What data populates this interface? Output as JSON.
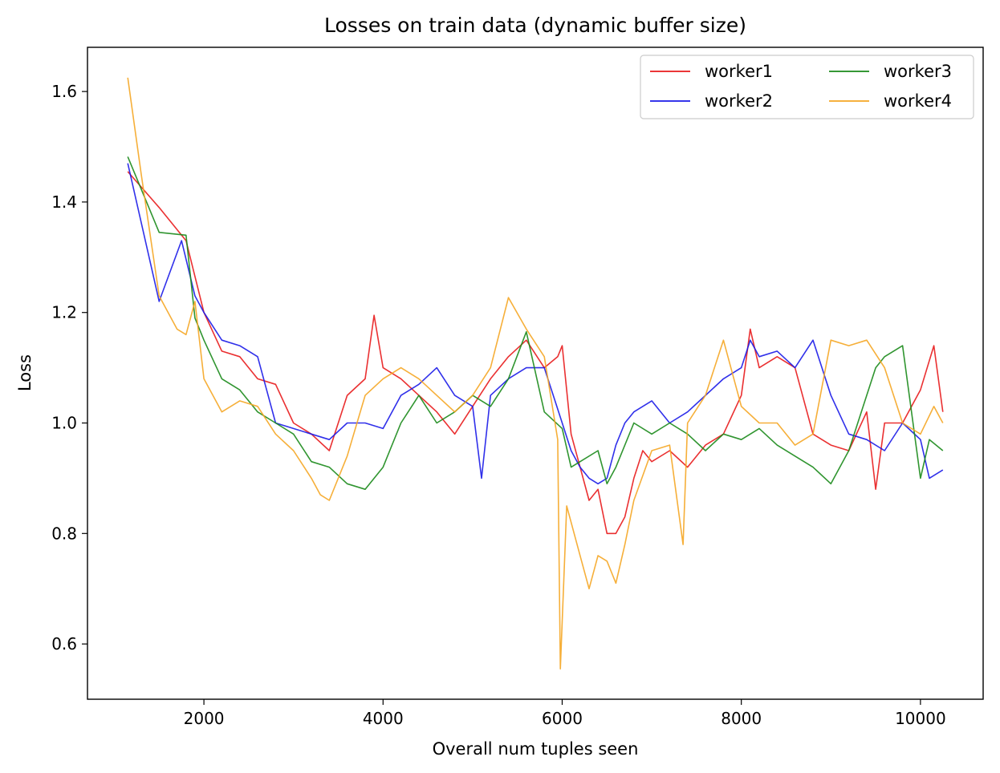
{
  "chart_data": {
    "type": "line",
    "title": "Losses on train data (dynamic buffer size)",
    "xlabel": "Overall num tuples seen",
    "ylabel": "Loss",
    "xlim": [
      700,
      10700
    ],
    "ylim": [
      0.5,
      1.68
    ],
    "xticks": [
      2000,
      4000,
      6000,
      8000,
      10000
    ],
    "yticks": [
      0.6,
      0.8,
      1.0,
      1.2,
      1.4,
      1.6
    ],
    "legend": {
      "location": "top-right",
      "columns": 2
    },
    "series": [
      {
        "name": "worker1",
        "color": "#e8191b",
        "x": [
          1150,
          1500,
          1800,
          2000,
          2200,
          2400,
          2600,
          2800,
          3000,
          3200,
          3400,
          3600,
          3800,
          3900,
          4000,
          4200,
          4400,
          4600,
          4800,
          5000,
          5200,
          5400,
          5600,
          5800,
          5950,
          6000,
          6100,
          6200,
          6300,
          6400,
          6500,
          6600,
          6700,
          6800,
          6900,
          7000,
          7200,
          7400,
          7600,
          7800,
          8000,
          8100,
          8200,
          8400,
          8600,
          8800,
          9000,
          9200,
          9400,
          9500,
          9600,
          9800,
          10000,
          10150,
          10250
        ],
        "y": [
          1.455,
          1.39,
          1.33,
          1.2,
          1.13,
          1.12,
          1.08,
          1.07,
          1.0,
          0.98,
          0.95,
          1.05,
          1.08,
          1.195,
          1.1,
          1.08,
          1.05,
          1.02,
          0.98,
          1.03,
          1.08,
          1.12,
          1.15,
          1.1,
          1.12,
          1.14,
          0.98,
          0.92,
          0.86,
          0.88,
          0.8,
          0.8,
          0.83,
          0.9,
          0.95,
          0.93,
          0.95,
          0.92,
          0.96,
          0.98,
          1.05,
          1.17,
          1.1,
          1.12,
          1.1,
          0.98,
          0.96,
          0.95,
          1.02,
          0.88,
          1.0,
          1.0,
          1.06,
          1.14,
          1.02
        ]
      },
      {
        "name": "worker2",
        "color": "#1a1ae8",
        "x": [
          1150,
          1500,
          1750,
          1900,
          2000,
          2200,
          2400,
          2600,
          2800,
          3000,
          3200,
          3400,
          3600,
          3800,
          4000,
          4200,
          4400,
          4600,
          4800,
          5000,
          5100,
          5200,
          5400,
          5600,
          5800,
          6000,
          6100,
          6200,
          6300,
          6400,
          6500,
          6600,
          6700,
          6800,
          7000,
          7200,
          7400,
          7600,
          7800,
          8000,
          8100,
          8200,
          8400,
          8600,
          8800,
          9000,
          9200,
          9400,
          9600,
          9800,
          10000,
          10100,
          10250
        ],
        "y": [
          1.47,
          1.22,
          1.33,
          1.23,
          1.2,
          1.15,
          1.14,
          1.12,
          1.0,
          0.99,
          0.98,
          0.97,
          1.0,
          1.0,
          0.99,
          1.05,
          1.07,
          1.1,
          1.05,
          1.03,
          0.9,
          1.05,
          1.08,
          1.1,
          1.1,
          1.0,
          0.95,
          0.92,
          0.9,
          0.89,
          0.9,
          0.96,
          1.0,
          1.02,
          1.04,
          1.0,
          1.02,
          1.05,
          1.08,
          1.1,
          1.15,
          1.12,
          1.13,
          1.1,
          1.15,
          1.05,
          0.98,
          0.97,
          0.95,
          1.0,
          0.97,
          0.9,
          0.915
        ]
      },
      {
        "name": "worker3",
        "color": "#1a8a1a",
        "x": [
          1150,
          1500,
          1800,
          1900,
          2000,
          2200,
          2400,
          2600,
          2800,
          3000,
          3200,
          3400,
          3600,
          3800,
          4000,
          4200,
          4400,
          4600,
          4800,
          5000,
          5200,
          5400,
          5600,
          5800,
          6000,
          6100,
          6200,
          6400,
          6500,
          6600,
          6800,
          7000,
          7200,
          7400,
          7600,
          7800,
          8000,
          8200,
          8400,
          8600,
          8800,
          9000,
          9200,
          9400,
          9500,
          9600,
          9800,
          10000,
          10100,
          10250
        ],
        "y": [
          1.482,
          1.345,
          1.34,
          1.19,
          1.15,
          1.08,
          1.06,
          1.02,
          1.0,
          0.98,
          0.93,
          0.92,
          0.89,
          0.88,
          0.92,
          1.0,
          1.05,
          1.0,
          1.02,
          1.05,
          1.03,
          1.08,
          1.165,
          1.02,
          0.99,
          0.92,
          0.93,
          0.95,
          0.89,
          0.92,
          1.0,
          0.98,
          1.0,
          0.98,
          0.95,
          0.98,
          0.97,
          0.99,
          0.96,
          0.94,
          0.92,
          0.89,
          0.95,
          1.05,
          1.1,
          1.12,
          1.14,
          0.9,
          0.97,
          0.95
        ]
      },
      {
        "name": "worker4",
        "color": "#f5a623",
        "x": [
          1150,
          1300,
          1500,
          1700,
          1800,
          1900,
          2000,
          2200,
          2400,
          2600,
          2800,
          3000,
          3200,
          3300,
          3400,
          3600,
          3800,
          4000,
          4200,
          4400,
          4600,
          4800,
          5000,
          5200,
          5400,
          5600,
          5800,
          5950,
          5980,
          6050,
          6200,
          6300,
          6400,
          6500,
          6600,
          6700,
          6800,
          7000,
          7200,
          7350,
          7400,
          7600,
          7800,
          8000,
          8200,
          8400,
          8600,
          8800,
          9000,
          9200,
          9400,
          9600,
          9800,
          10000,
          10150,
          10250
        ],
        "y": [
          1.625,
          1.45,
          1.23,
          1.17,
          1.16,
          1.22,
          1.08,
          1.02,
          1.04,
          1.03,
          0.98,
          0.95,
          0.9,
          0.87,
          0.86,
          0.94,
          1.05,
          1.08,
          1.1,
          1.08,
          1.05,
          1.02,
          1.05,
          1.1,
          1.227,
          1.17,
          1.12,
          0.97,
          0.555,
          0.85,
          0.76,
          0.7,
          0.76,
          0.75,
          0.71,
          0.78,
          0.86,
          0.95,
          0.96,
          0.78,
          1.0,
          1.05,
          1.15,
          1.03,
          1.0,
          1.0,
          0.96,
          0.98,
          1.15,
          1.14,
          1.15,
          1.1,
          1.0,
          0.98,
          1.03,
          1.0
        ]
      }
    ]
  }
}
